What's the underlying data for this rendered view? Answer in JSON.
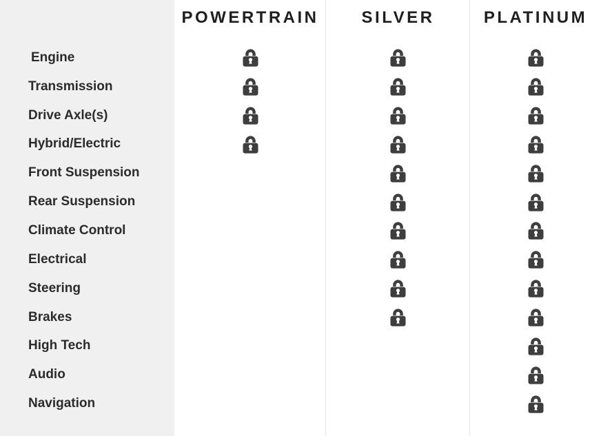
{
  "page_title": "Coverage comparison table",
  "colors": {
    "page_bg": "#ffffff",
    "sidebar_bg": "#f0f0f0",
    "divider": "#e2e2e2",
    "header_text": "#1f1f1f",
    "label_text": "#2b2b2b",
    "lock": "#3e3e3e",
    "keyhole": "#ffffff"
  },
  "icons": {
    "covered": "lock-icon"
  },
  "table": {
    "columns": [
      {
        "key": "powertrain",
        "label": "POWERTRAIN"
      },
      {
        "key": "silver",
        "label": "SILVER"
      },
      {
        "key": "platinum",
        "label": "PLATINUM"
      }
    ],
    "rows": [
      {
        "label": "Engine",
        "coverage": {
          "powertrain": true,
          "silver": true,
          "platinum": true
        }
      },
      {
        "label": "Transmission",
        "coverage": {
          "powertrain": true,
          "silver": true,
          "platinum": true
        }
      },
      {
        "label": "Drive Axle(s)",
        "coverage": {
          "powertrain": true,
          "silver": true,
          "platinum": true
        }
      },
      {
        "label": "Hybrid/Electric",
        "coverage": {
          "powertrain": true,
          "silver": true,
          "platinum": true
        }
      },
      {
        "label": "Front Suspension",
        "coverage": {
          "powertrain": false,
          "silver": true,
          "platinum": true
        }
      },
      {
        "label": "Rear Suspension",
        "coverage": {
          "powertrain": false,
          "silver": true,
          "platinum": true
        }
      },
      {
        "label": "Climate Control",
        "coverage": {
          "powertrain": false,
          "silver": true,
          "platinum": true
        }
      },
      {
        "label": "Electrical",
        "coverage": {
          "powertrain": false,
          "silver": true,
          "platinum": true
        }
      },
      {
        "label": "Steering",
        "coverage": {
          "powertrain": false,
          "silver": true,
          "platinum": true
        }
      },
      {
        "label": "Brakes",
        "coverage": {
          "powertrain": false,
          "silver": true,
          "platinum": true
        }
      },
      {
        "label": "High Tech",
        "coverage": {
          "powertrain": false,
          "silver": false,
          "platinum": true
        }
      },
      {
        "label": "Audio",
        "coverage": {
          "powertrain": false,
          "silver": false,
          "platinum": true
        }
      },
      {
        "label": "Navigation",
        "coverage": {
          "powertrain": false,
          "silver": false,
          "platinum": true
        }
      }
    ]
  }
}
